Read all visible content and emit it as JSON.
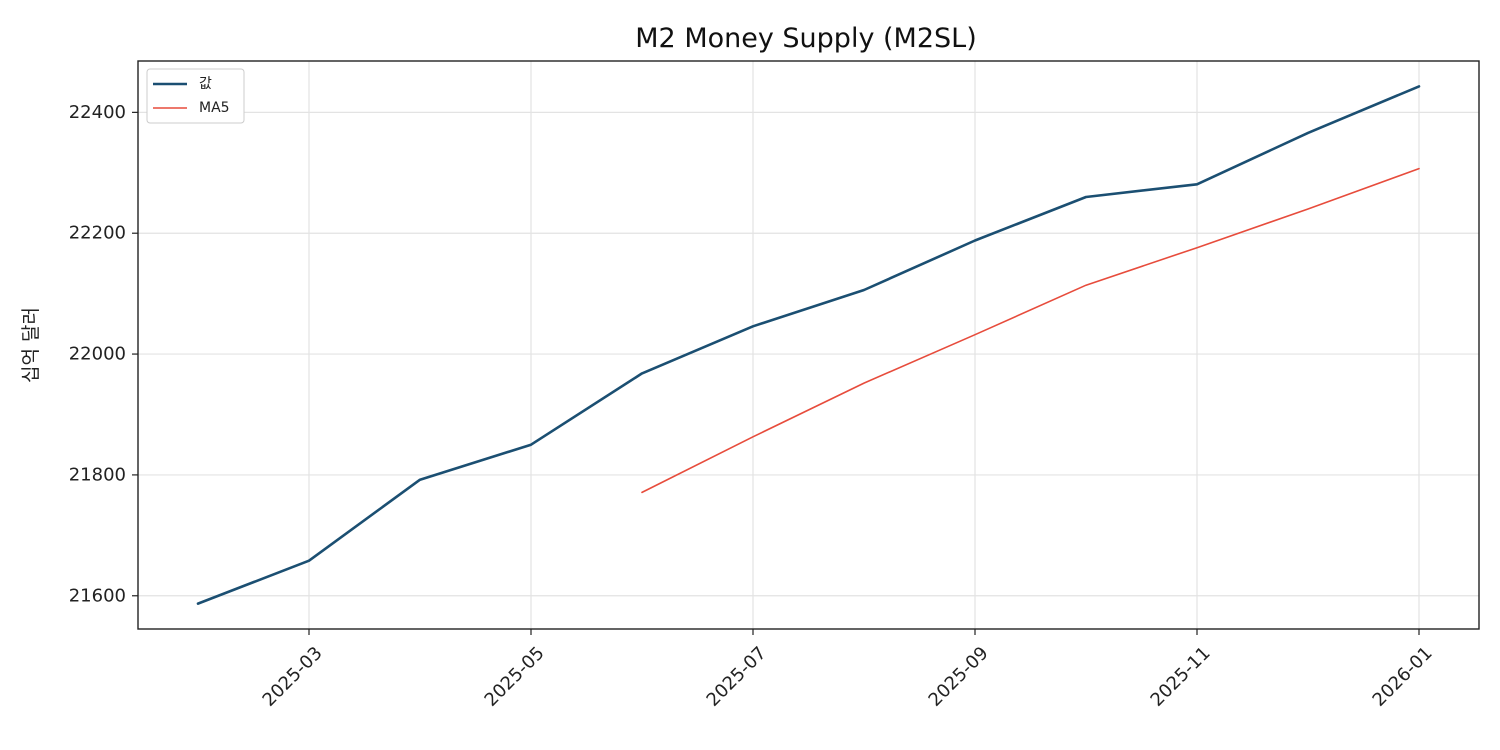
{
  "chart_data": {
    "type": "line",
    "title": "M2 Money Supply (M2SL)",
    "xlabel": "",
    "ylabel": "십억 달러",
    "x": [
      "2025-02",
      "2025-03",
      "2025-04",
      "2025-05",
      "2025-06",
      "2025-07",
      "2025-08",
      "2025-09",
      "2025-10",
      "2025-11",
      "2025-12",
      "2026-01"
    ],
    "xticks": [
      "2025-03",
      "2025-05",
      "2025-07",
      "2025-09",
      "2025-11",
      "2026-01"
    ],
    "yticks": [
      21600,
      21800,
      22000,
      22200,
      22400
    ],
    "ylim": [
      21545,
      22485
    ],
    "grid": true,
    "legend_position": "top-left",
    "series": [
      {
        "name": "값",
        "color": "#1b4f72",
        "values": [
          21587,
          21658,
          21792,
          21850,
          21968,
          22046,
          22106,
          22188,
          22260,
          22281,
          22366,
          22443
        ]
      },
      {
        "name": "MA5",
        "color": "#e74c3c",
        "values": [
          null,
          null,
          null,
          null,
          21771,
          21863,
          21952,
          22032,
          22114,
          22176,
          22240,
          22307
        ]
      }
    ]
  }
}
